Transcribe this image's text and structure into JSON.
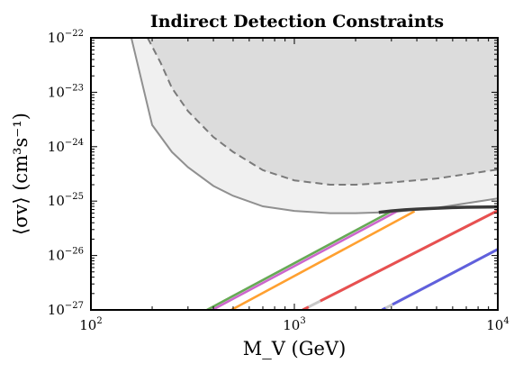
{
  "chart_data": {
    "type": "line",
    "title": "Indirect Detection Constraints",
    "xlabel": "M_V (GeV)",
    "ylabel": "⟨σv⟩ (cm³s⁻¹)",
    "xscale": "log",
    "yscale": "log",
    "xlim": [
      100,
      10000
    ],
    "ylim": [
      1e-27,
      1e-22
    ],
    "x_ticks": [
      {
        "base": "10",
        "exp": "2"
      },
      {
        "base": "10",
        "exp": "3"
      },
      {
        "base": "10",
        "exp": "4"
      }
    ],
    "y_ticks": [
      {
        "base": "10",
        "exp": "−27"
      },
      {
        "base": "10",
        "exp": "−26"
      },
      {
        "base": "10",
        "exp": "−25"
      },
      {
        "base": "10",
        "exp": "−24"
      },
      {
        "base": "10",
        "exp": "−23"
      },
      {
        "base": "10",
        "exp": "−22"
      }
    ],
    "grid": false,
    "legend": "none",
    "regions": [
      {
        "style": "filled-solid-edge",
        "color": "#f0f0f0",
        "edge_color": "#909090",
        "x": [
          158,
          200,
          250,
          300,
          400,
          500,
          700,
          1000,
          1500,
          2000,
          3000,
          5000,
          10000
        ],
        "y": [
          1e-22,
          2.5e-24,
          8e-25,
          4.2e-25,
          1.9e-25,
          1.25e-25,
          8e-26,
          6.6e-26,
          6e-26,
          6e-26,
          6.3e-26,
          7.5e-26,
          1.12e-25
        ]
      },
      {
        "style": "filled-dashed-edge",
        "color": "#dcdcdc",
        "edge_color": "#7a7a7a",
        "x": [
          190,
          220,
          250,
          300,
          400,
          500,
          700,
          1000,
          1500,
          2000,
          3000,
          5000,
          10000
        ],
        "y": [
          1e-22,
          3.5e-23,
          1.2e-23,
          4.5e-24,
          1.5e-24,
          8e-25,
          3.7e-25,
          2.4e-25,
          2e-25,
          2e-25,
          2.2e-25,
          2.6e-25,
          3.8e-25
        ]
      }
    ],
    "series": [
      {
        "color": "#66aa55",
        "style": "solid",
        "x": [
          372,
          3000
        ],
        "y": [
          1e-27,
          6.5e-26
        ]
      },
      {
        "color": "#cc66cc",
        "style": "solid",
        "x": [
          395,
          3200
        ],
        "y": [
          1e-27,
          6.5e-26
        ]
      },
      {
        "color": "#ffa030",
        "style": "solid",
        "x": [
          490,
          3900
        ],
        "y": [
          1e-27,
          6.5e-26
        ]
      },
      {
        "color": "#e85050",
        "style": "dash-gap",
        "x": [
          1100,
          10000
        ],
        "y": [
          1e-27,
          6.7e-26
        ]
      },
      {
        "color": "#6060dd",
        "style": "dash-gap",
        "x": [
          2700,
          10000
        ],
        "y": [
          1e-27,
          1.3e-26
        ]
      },
      {
        "color": "#3a3a3a",
        "style": "solid",
        "x": [
          2600,
          3000,
          3500,
          4000,
          5000,
          6000,
          7000,
          8000,
          9000,
          10000
        ],
        "y": [
          6.2e-26,
          6.6e-26,
          6.9e-26,
          7.1e-26,
          7.4e-26,
          7.6e-26,
          7.7e-26,
          7.75e-26,
          7.8e-26,
          7.82e-26
        ]
      }
    ]
  }
}
